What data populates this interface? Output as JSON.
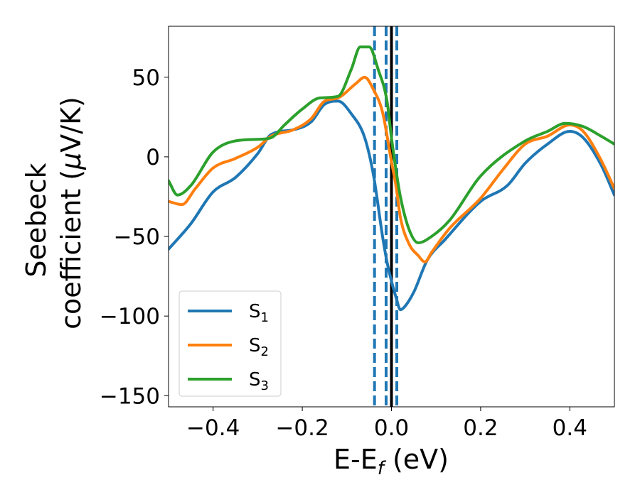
{
  "chart_data": {
    "type": "line",
    "xlabel": {
      "main": "E-E",
      "sub": "f",
      "unit": " (eV)"
    },
    "ylabel": {
      "line1": "Seebeck",
      "line2": "coefficient  (",
      "mu": "μ",
      "unit": "V/K)"
    },
    "xlim": [
      -0.5,
      0.5
    ],
    "ylim": [
      -157,
      82
    ],
    "xticks": [
      -0.4,
      -0.2,
      0.0,
      0.2,
      0.4
    ],
    "xtick_labels": [
      "−0.4",
      "−0.2",
      "0.0",
      "0.2",
      "0.4"
    ],
    "yticks": [
      50,
      0,
      -50,
      -100,
      -150
    ],
    "ytick_labels": [
      "50",
      "0",
      "−50",
      "−100",
      "−150"
    ],
    "grid": false,
    "legend_position": "lower-left",
    "vlines": {
      "solid": {
        "x": 0.0,
        "color": "#000000"
      },
      "dashed": {
        "x": [
          -0.038,
          -0.012,
          0.012
        ],
        "color": "#1f77b4"
      }
    },
    "series": [
      {
        "name": "S",
        "sub": "1",
        "color": "#1f77b4",
        "points": [
          [
            -0.5,
            -58
          ],
          [
            -0.45,
            -42
          ],
          [
            -0.4,
            -22
          ],
          [
            -0.35,
            -13
          ],
          [
            -0.3,
            2
          ],
          [
            -0.27,
            14
          ],
          [
            -0.22,
            17
          ],
          [
            -0.18,
            22
          ],
          [
            -0.15,
            33
          ],
          [
            -0.12,
            35
          ],
          [
            -0.09,
            27
          ],
          [
            -0.06,
            12
          ],
          [
            -0.04,
            -12
          ],
          [
            -0.02,
            -50
          ],
          [
            -0.01,
            -66
          ],
          [
            0.0,
            -78
          ],
          [
            0.01,
            -88
          ],
          [
            0.02,
            -96
          ],
          [
            0.03,
            -94
          ],
          [
            0.05,
            -85
          ],
          [
            0.08,
            -65
          ],
          [
            0.12,
            -52
          ],
          [
            0.2,
            -28
          ],
          [
            0.26,
            -18
          ],
          [
            0.3,
            -4
          ],
          [
            0.35,
            8
          ],
          [
            0.4,
            16
          ],
          [
            0.43,
            12
          ],
          [
            0.47,
            -5
          ],
          [
            0.5,
            -24
          ]
        ]
      },
      {
        "name": "S",
        "sub": "2",
        "color": "#ff7f0e",
        "points": [
          [
            -0.5,
            -28
          ],
          [
            -0.47,
            -30
          ],
          [
            -0.44,
            -20
          ],
          [
            -0.4,
            -7
          ],
          [
            -0.35,
            -1
          ],
          [
            -0.3,
            6
          ],
          [
            -0.27,
            13
          ],
          [
            -0.22,
            17
          ],
          [
            -0.18,
            24
          ],
          [
            -0.15,
            35
          ],
          [
            -0.12,
            37
          ],
          [
            -0.08,
            46
          ],
          [
            -0.06,
            50
          ],
          [
            -0.04,
            42
          ],
          [
            -0.02,
            28
          ],
          [
            0.0,
            -3
          ],
          [
            0.01,
            -18
          ],
          [
            0.02,
            -38
          ],
          [
            0.04,
            -55
          ],
          [
            0.06,
            -62
          ],
          [
            0.075,
            -66
          ],
          [
            0.09,
            -60
          ],
          [
            0.13,
            -45
          ],
          [
            0.2,
            -26
          ],
          [
            0.25,
            -8
          ],
          [
            0.3,
            8
          ],
          [
            0.35,
            13
          ],
          [
            0.4,
            20
          ],
          [
            0.43,
            16
          ],
          [
            0.47,
            -2
          ],
          [
            0.5,
            -20
          ]
        ]
      },
      {
        "name": "S",
        "sub": "3",
        "color": "#2ca02c",
        "points": [
          [
            -0.5,
            -15
          ],
          [
            -0.48,
            -24
          ],
          [
            -0.45,
            -18
          ],
          [
            -0.4,
            3
          ],
          [
            -0.35,
            10
          ],
          [
            -0.3,
            11
          ],
          [
            -0.27,
            12
          ],
          [
            -0.24,
            20
          ],
          [
            -0.2,
            30
          ],
          [
            -0.16,
            37
          ],
          [
            -0.12,
            38
          ],
          [
            -0.09,
            55
          ],
          [
            -0.07,
            69
          ],
          [
            -0.05,
            69
          ],
          [
            -0.03,
            55
          ],
          [
            -0.01,
            35
          ],
          [
            0.0,
            12
          ],
          [
            0.01,
            -8
          ],
          [
            0.02,
            -25
          ],
          [
            0.04,
            -46
          ],
          [
            0.06,
            -54
          ],
          [
            0.09,
            -50
          ],
          [
            0.13,
            -40
          ],
          [
            0.2,
            -12
          ],
          [
            0.3,
            10
          ],
          [
            0.35,
            16
          ],
          [
            0.39,
            21
          ],
          [
            0.43,
            19
          ],
          [
            0.47,
            13
          ],
          [
            0.5,
            8
          ]
        ]
      }
    ]
  }
}
